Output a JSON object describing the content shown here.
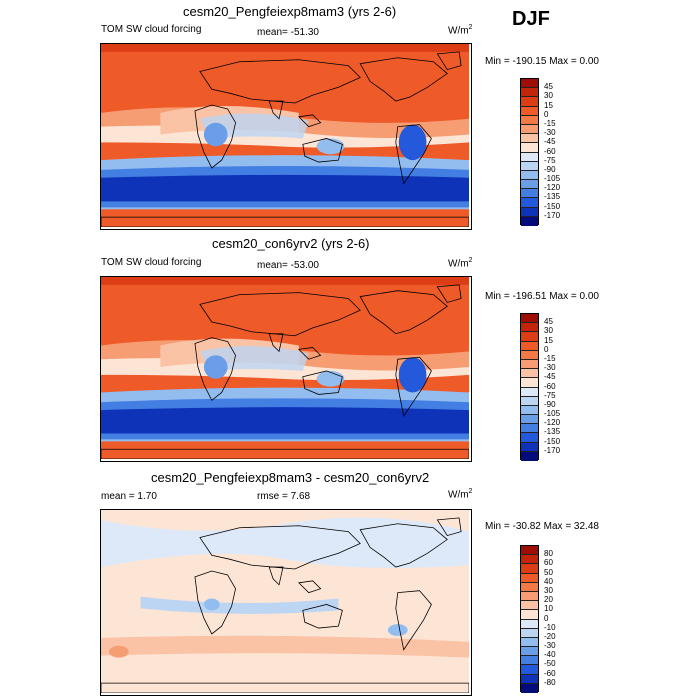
{
  "season": "DJF",
  "chart_data": [
    {
      "type": "heatmap",
      "title": "cesm20_Pengfeiexp8mam3 (yrs 2-6)",
      "left_label": "TOM SW cloud forcing",
      "center_label": "mean= -51.30",
      "units": "W/m",
      "units_sup": "2",
      "minmax": "Min = -190.15 Max =   0.00",
      "colorbar_levels": [
        "45",
        "30",
        "15",
        "0",
        "-15",
        "-30",
        "-45",
        "-60",
        "-75",
        "-90",
        "-105",
        "-120",
        "-135",
        "-150",
        "-170"
      ],
      "colorbar_colors": [
        "#9e0d06",
        "#c2250a",
        "#dd3d14",
        "#ee5a28",
        "#f47a45",
        "#f79d73",
        "#fac3a5",
        "#fde5d6",
        "#dde9f8",
        "#bcd5f3",
        "#94bdef",
        "#6a9ee9",
        "#437ee3",
        "#2459dc",
        "#0e33b8",
        "#040b7a"
      ]
    },
    {
      "type": "heatmap",
      "title": "cesm20_con6yrv2 (yrs 2-6)",
      "left_label": "TOM SW cloud forcing",
      "center_label": "mean= -53.00",
      "units": "W/m",
      "units_sup": "2",
      "minmax": "Min = -196.51 Max =   0.00",
      "colorbar_levels": [
        "45",
        "30",
        "15",
        "0",
        "-15",
        "-30",
        "-45",
        "-60",
        "-75",
        "-90",
        "-105",
        "-120",
        "-135",
        "-150",
        "-170"
      ],
      "colorbar_colors": [
        "#9e0d06",
        "#c2250a",
        "#dd3d14",
        "#ee5a28",
        "#f47a45",
        "#f79d73",
        "#fac3a5",
        "#fde5d6",
        "#dde9f8",
        "#bcd5f3",
        "#94bdef",
        "#6a9ee9",
        "#437ee3",
        "#2459dc",
        "#0e33b8",
        "#040b7a"
      ]
    },
    {
      "type": "heatmap",
      "title": "cesm20_Pengfeiexp8mam3 - cesm20_con6yrv2",
      "left_label": "mean =   1.70",
      "center_label": "rmse =   7.68",
      "units": "W/m",
      "units_sup": "2",
      "minmax": "Min = -30.82 Max =  32.48",
      "colorbar_levels": [
        "80",
        "60",
        "50",
        "40",
        "30",
        "20",
        "10",
        "0",
        "-10",
        "-20",
        "-30",
        "-40",
        "-50",
        "-60",
        "-80"
      ],
      "colorbar_colors": [
        "#9e0d06",
        "#c2250a",
        "#dd3d14",
        "#ee5a28",
        "#f47a45",
        "#f79d73",
        "#fac3a5",
        "#fde5d6",
        "#dde9f8",
        "#bcd5f3",
        "#94bdef",
        "#6a9ee9",
        "#437ee3",
        "#2459dc",
        "#0e33b8",
        "#040b7a"
      ]
    }
  ]
}
